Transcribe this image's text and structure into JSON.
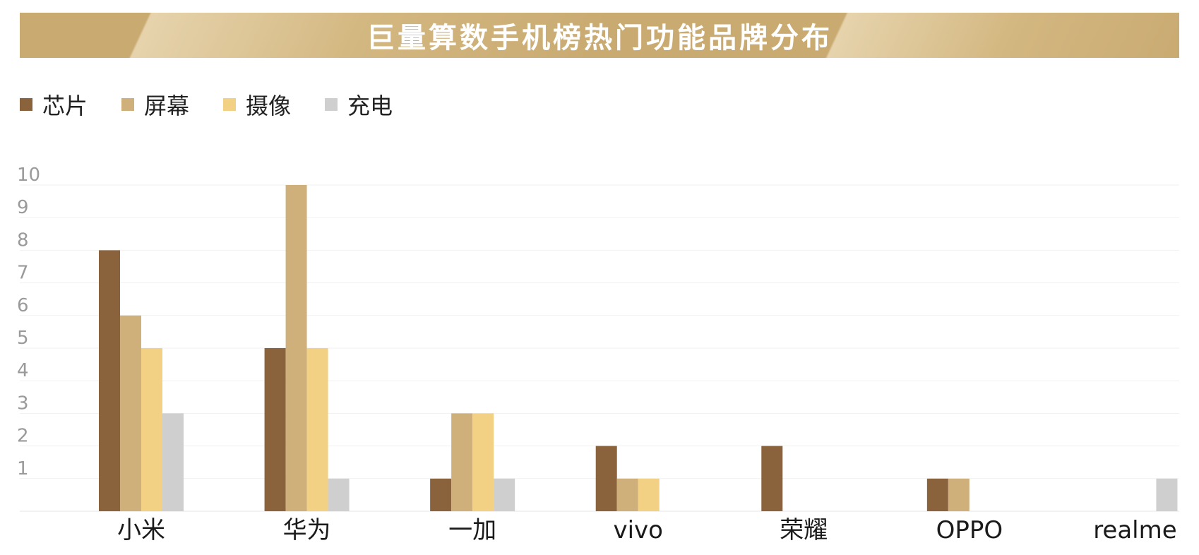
{
  "title": "巨量算数手机榜热门功能品牌分布",
  "legend": [
    {
      "label": "芯片",
      "color": "#8a623b"
    },
    {
      "label": "屏幕",
      "color": "#cfb07b"
    },
    {
      "label": "摄像",
      "color": "#f2d084"
    },
    {
      "label": "充电",
      "color": "#cfcfcf"
    }
  ],
  "chart_data": {
    "type": "bar",
    "title": "巨量算数手机榜热门功能品牌分布",
    "categories": [
      "小米",
      "华为",
      "一加",
      "vivo",
      "荣耀",
      "OPPO",
      "realme"
    ],
    "series": [
      {
        "name": "芯片",
        "values": [
          8,
          5,
          1,
          2,
          2,
          1,
          0
        ]
      },
      {
        "name": "屏幕",
        "values": [
          6,
          10,
          3,
          1,
          0,
          1,
          0
        ]
      },
      {
        "name": "摄像",
        "values": [
          5,
          5,
          3,
          1,
          0,
          0,
          0
        ]
      },
      {
        "name": "充电",
        "values": [
          3,
          1,
          1,
          0,
          0,
          0,
          1
        ]
      }
    ],
    "ylim": [
      0,
      10
    ],
    "yticks": [
      1,
      2,
      3,
      4,
      5,
      6,
      7,
      8,
      9,
      10
    ],
    "grid": true,
    "legend_position": "top-left",
    "colors": [
      "#8a623b",
      "#cfb07b",
      "#f2d084",
      "#cfcfcf"
    ]
  }
}
